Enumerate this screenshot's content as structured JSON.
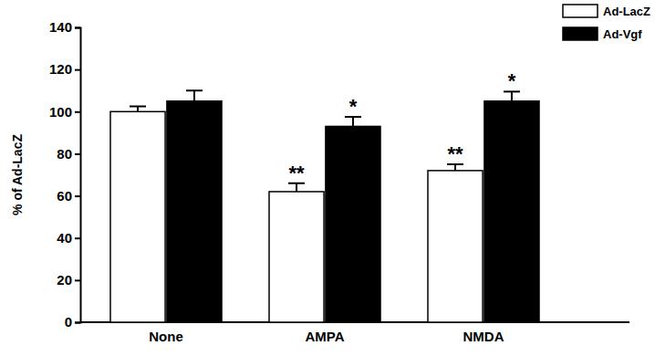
{
  "chart_data": {
    "type": "bar",
    "y_label": "% of Ad-LacZ",
    "categories": [
      "None",
      "AMPA",
      "NMDA"
    ],
    "series": [
      {
        "name": "Ad-LacZ",
        "color": "#ffffff",
        "values": [
          100,
          62,
          72
        ],
        "errors": [
          2.5,
          4,
          3
        ],
        "significance": [
          null,
          "**",
          "**"
        ]
      },
      {
        "name": "Ad-Vgf",
        "color": "#000000",
        "values": [
          105,
          93,
          105
        ],
        "errors": [
          5,
          4.5,
          4.5
        ],
        "significance": [
          null,
          "*",
          "*"
        ]
      }
    ],
    "ylim": [
      0,
      140
    ],
    "yticks": [
      0,
      20,
      40,
      60,
      80,
      100,
      120,
      140
    ],
    "legend": "top-right",
    "grid": false
  }
}
